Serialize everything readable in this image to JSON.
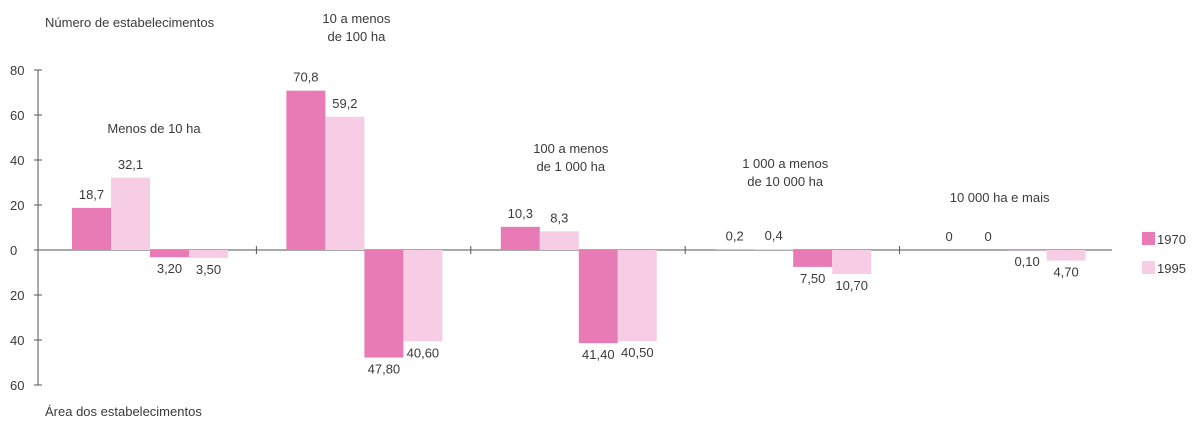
{
  "chart_data": {
    "type": "bar",
    "title": "",
    "ylabel_top": "Número de estabelecimentos",
    "ylabel_bottom": "Área dos estabelecimentos",
    "ylim": [
      -60,
      80
    ],
    "yticks": [
      {
        "value": 80,
        "label": "80"
      },
      {
        "value": 60,
        "label": "60"
      },
      {
        "value": 40,
        "label": "40"
      },
      {
        "value": 20,
        "label": "20"
      },
      {
        "value": 0,
        "label": "0"
      },
      {
        "value": -20,
        "label": "20"
      },
      {
        "value": -40,
        "label": "40"
      },
      {
        "value": -60,
        "label": "60"
      }
    ],
    "categories": [
      [
        "Menos de 10 ha"
      ],
      [
        "10 a menos",
        "de 100  ha"
      ],
      [
        "100 a menos",
        "de 1 000  ha"
      ],
      [
        "1 000 a menos",
        "de 10 000  ha"
      ],
      [
        "10 000  ha e mais"
      ]
    ],
    "legend": {
      "placement": "right",
      "items": [
        "1970",
        "1995"
      ]
    },
    "colors": {
      "1970": "#e87ab5",
      "1995": "#f7cde5"
    },
    "series": [
      {
        "name": "1970",
        "number_values": [
          18.7,
          70.8,
          10.3,
          0.2,
          0
        ],
        "number_labels": [
          "18,7",
          "70,8",
          "10,3",
          "0,2",
          "0"
        ],
        "area_values": [
          3.2,
          47.8,
          41.4,
          7.5,
          0.1
        ],
        "area_labels": [
          "3,20",
          "47,80",
          "41,40",
          "7,50",
          "0,10"
        ]
      },
      {
        "name": "1995",
        "number_values": [
          32.1,
          59.2,
          8.3,
          0.4,
          0
        ],
        "number_labels": [
          "32,1",
          "59,2",
          "8,3",
          "0,4",
          "0"
        ],
        "area_values": [
          3.5,
          40.6,
          40.5,
          10.7,
          4.7
        ],
        "area_labels": [
          "3,50",
          "40,60",
          "40,50",
          "10,70",
          "4,70"
        ]
      }
    ]
  }
}
